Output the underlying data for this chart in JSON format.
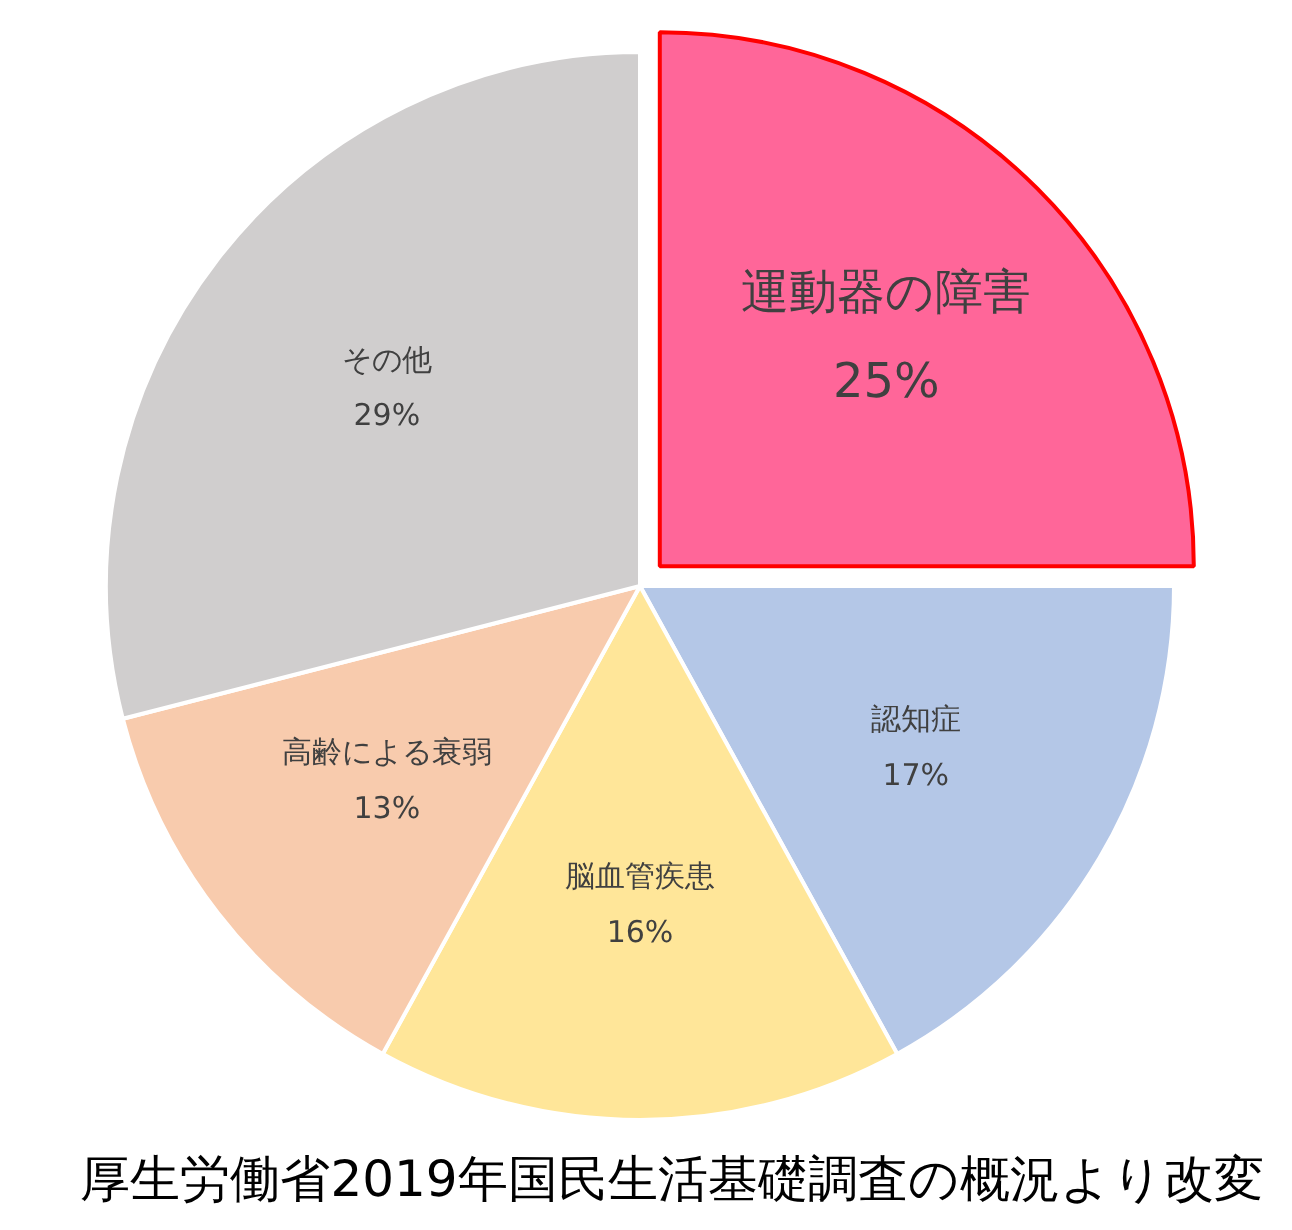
{
  "chart_data": {
    "type": "pie",
    "categories": [
      "運動器の障害",
      "認知症",
      "脳血管疾患",
      "高齢による衰弱",
      "その他"
    ],
    "values": [
      25,
      17,
      16,
      13,
      29
    ],
    "colors": [
      "#ff6699",
      "#b4c7e7",
      "#ffe699",
      "#f8cbad",
      "#d0cece"
    ],
    "value_labels": [
      "25%",
      "17%",
      "16%",
      "13%",
      "29%"
    ],
    "annotations": [
      "厚生労働省2019年国民生活基礎調査の概況より改変"
    ]
  }
}
